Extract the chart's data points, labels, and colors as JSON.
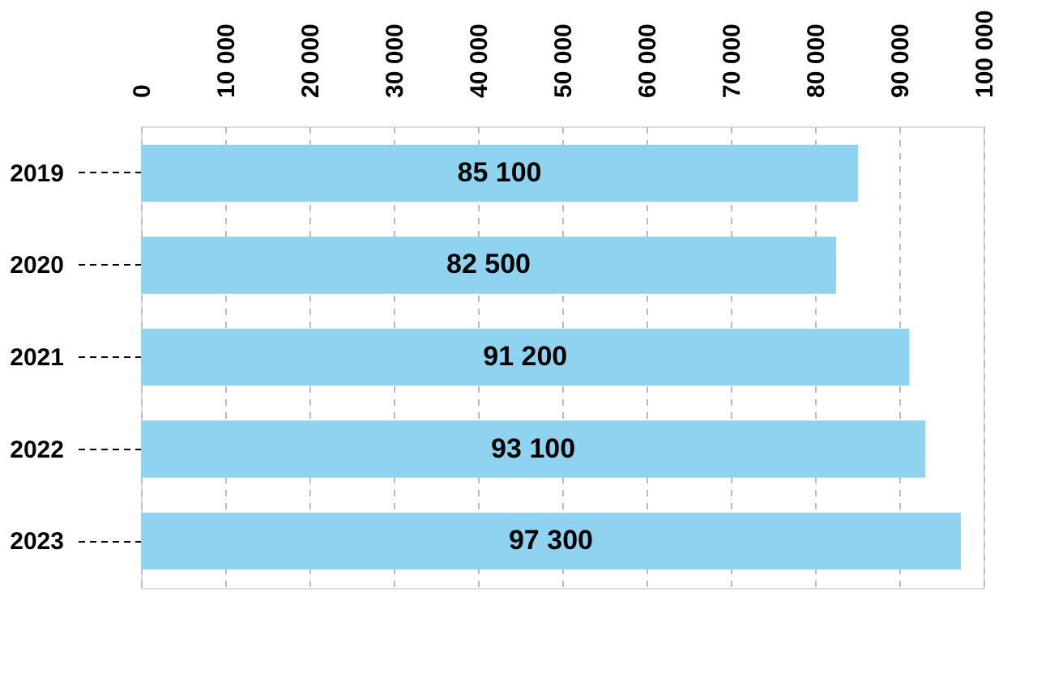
{
  "chart_data": {
    "type": "bar",
    "orientation": "horizontal",
    "categories": [
      "2019",
      "2020",
      "2021",
      "2022",
      "2023"
    ],
    "values": [
      85100,
      82500,
      91200,
      93100,
      97300
    ],
    "value_labels": [
      "85 100",
      "82 500",
      "91 200",
      "93 100",
      "97 300"
    ],
    "color": "#8fd3f0",
    "xlim": [
      0,
      100000
    ],
    "xticks": [
      0,
      {
        "value": 10000,
        "label": "10 000"
      },
      {
        "value": 20000,
        "label": "20 000"
      },
      {
        "value": 30000,
        "label": "30 000"
      },
      {
        "value": 40000,
        "label": "40 000"
      },
      {
        "value": 50000,
        "label": "50 000"
      },
      {
        "value": 60000,
        "label": "60 000"
      },
      {
        "value": 70000,
        "label": "70 000"
      },
      {
        "value": 80000,
        "label": "80 000"
      },
      {
        "value": 90000,
        "label": "90 000"
      },
      {
        "value": 100000,
        "label": "100 000"
      }
    ],
    "grid": "x"
  }
}
